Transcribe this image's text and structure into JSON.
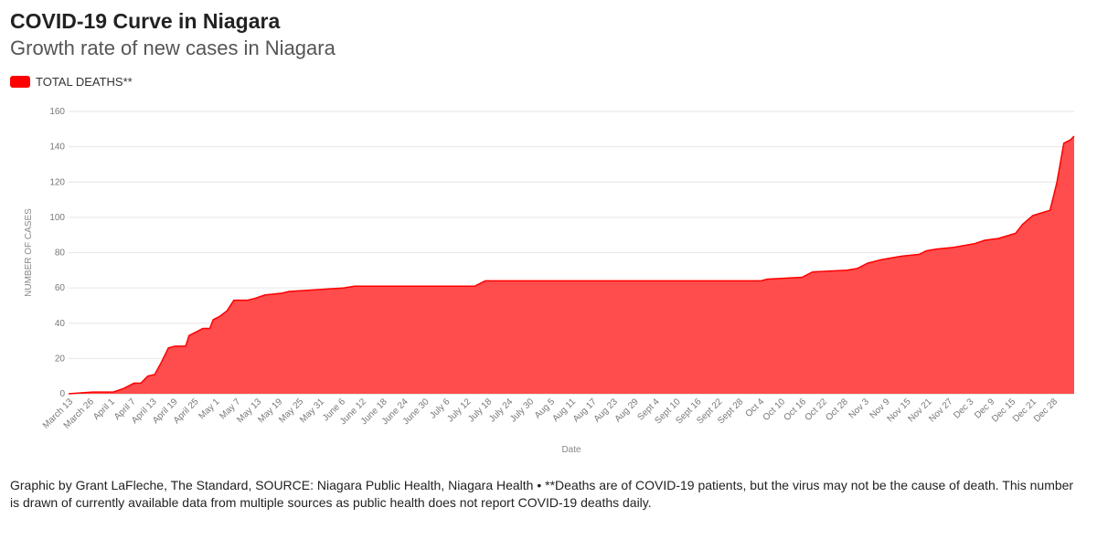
{
  "header": {
    "title": "COVID-19 Curve in Niagara",
    "subtitle": "Growth rate of new cases in Niagara"
  },
  "footer": {
    "text": "Graphic by Grant LaFleche, The Standard, SOURCE: Niagara Public Health, Niagara Health • **Deaths are of COVID-19 patients, but the virus may not be the cause of death. This number is drawn of currently available data from multiple sources as public health does not report COVID-19 deaths daily."
  },
  "colors": {
    "series": "#ff0000",
    "fill": "#ff4d4d"
  },
  "chart_data": {
    "type": "area",
    "xlabel": "Date",
    "ylabel": "NUMBER OF CASES",
    "ylim": [
      0,
      160
    ],
    "yticks": [
      0,
      20,
      40,
      60,
      80,
      100,
      120,
      140,
      160
    ],
    "grid": true,
    "legend_position": "top-left",
    "x_tick_labels": [
      "March 13",
      "March 26",
      "April 1",
      "April 7",
      "April 13",
      "April 19",
      "April 25",
      "May 1",
      "May 7",
      "May 13",
      "May 19",
      "May 25",
      "May 31",
      "June 6",
      "June 12",
      "June 18",
      "June 24",
      "June 30",
      "July 6",
      "July 12",
      "July 18",
      "July 24",
      "July 30",
      "Aug 5",
      "Aug 11",
      "Aug 17",
      "Aug 23",
      "Aug 29",
      "Sept 4",
      "Sept 10",
      "Sept 16",
      "Sept 22",
      "Sept 28",
      "Oct 4",
      "Oct 10",
      "Oct 16",
      "Oct 22",
      "Oct 28",
      "Nov 3",
      "Nov 9",
      "Nov 15",
      "Nov 21",
      "Nov 27",
      "Dec 3",
      "Dec 9",
      "Dec 15",
      "Dec 21",
      "Dec 28"
    ],
    "series": [
      {
        "name": "TOTAL DEATHS**",
        "points": [
          [
            "2020-03-13",
            0
          ],
          [
            "2020-03-20",
            1
          ],
          [
            "2020-03-26",
            1
          ],
          [
            "2020-03-29",
            3
          ],
          [
            "2020-04-01",
            6
          ],
          [
            "2020-04-03",
            6
          ],
          [
            "2020-04-05",
            10
          ],
          [
            "2020-04-07",
            11
          ],
          [
            "2020-04-09",
            18
          ],
          [
            "2020-04-11",
            26
          ],
          [
            "2020-04-13",
            27
          ],
          [
            "2020-04-16",
            27
          ],
          [
            "2020-04-17",
            33
          ],
          [
            "2020-04-19",
            35
          ],
          [
            "2020-04-21",
            37
          ],
          [
            "2020-04-23",
            37
          ],
          [
            "2020-04-24",
            42
          ],
          [
            "2020-04-26",
            44
          ],
          [
            "2020-04-28",
            47
          ],
          [
            "2020-04-30",
            53
          ],
          [
            "2020-05-04",
            53
          ],
          [
            "2020-05-06",
            54
          ],
          [
            "2020-05-09",
            56
          ],
          [
            "2020-05-14",
            57
          ],
          [
            "2020-05-16",
            58
          ],
          [
            "2020-05-24",
            59
          ],
          [
            "2020-06-01",
            60
          ],
          [
            "2020-06-04",
            61
          ],
          [
            "2020-07-09",
            61
          ],
          [
            "2020-07-12",
            64
          ],
          [
            "2020-09-30",
            64
          ],
          [
            "2020-10-02",
            65
          ],
          [
            "2020-10-12",
            66
          ],
          [
            "2020-10-15",
            69
          ],
          [
            "2020-10-25",
            70
          ],
          [
            "2020-10-28",
            71
          ],
          [
            "2020-10-31",
            74
          ],
          [
            "2020-11-04",
            76
          ],
          [
            "2020-11-07",
            77
          ],
          [
            "2020-11-10",
            78
          ],
          [
            "2020-11-15",
            79
          ],
          [
            "2020-11-17",
            81
          ],
          [
            "2020-11-20",
            82
          ],
          [
            "2020-11-25",
            83
          ],
          [
            "2020-12-01",
            85
          ],
          [
            "2020-12-04",
            87
          ],
          [
            "2020-12-08",
            88
          ],
          [
            "2020-12-13",
            91
          ],
          [
            "2020-12-15",
            96
          ],
          [
            "2020-12-18",
            101
          ],
          [
            "2020-12-23",
            104
          ],
          [
            "2020-12-25",
            120
          ],
          [
            "2020-12-27",
            142
          ],
          [
            "2020-12-29",
            144
          ],
          [
            "2020-12-30",
            146
          ]
        ]
      }
    ]
  }
}
